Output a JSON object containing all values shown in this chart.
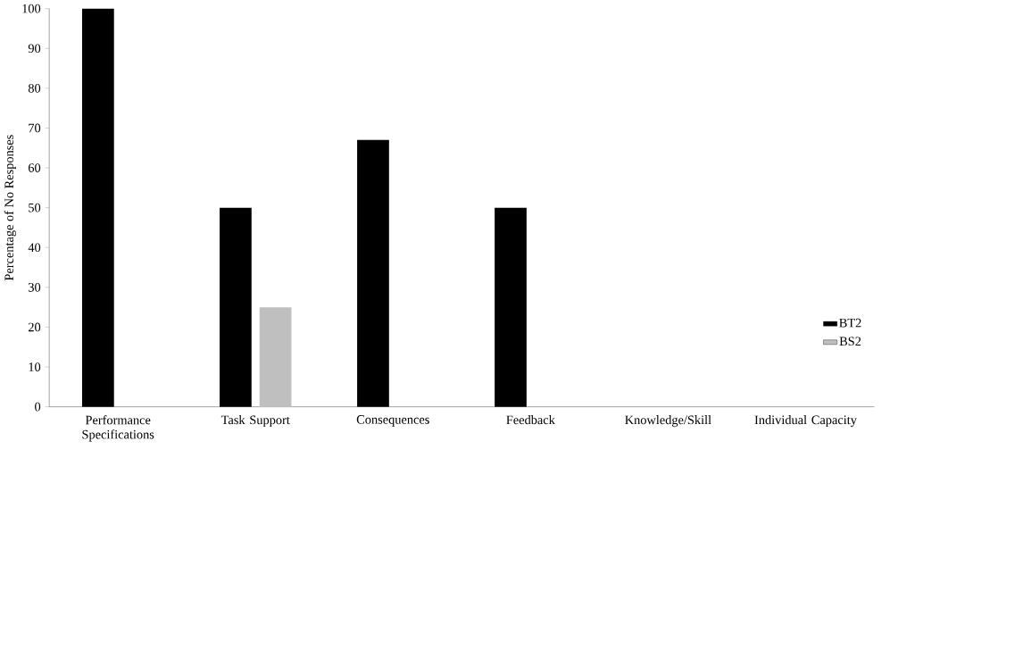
{
  "chart_data": {
    "type": "bar",
    "ylabel": "Percentage of No Responses",
    "categories": [
      "Performance Specifications",
      "Task Support",
      "Consequences",
      "Feedback",
      "Knowledge/Skill",
      "Individual Capacity"
    ],
    "series": [
      {
        "name": "BT2",
        "color": "#000000",
        "values": [
          100,
          50,
          67,
          50,
          0,
          0
        ]
      },
      {
        "name": "BS2",
        "color": "#bfbfbf",
        "values": [
          0,
          25,
          0,
          0,
          0,
          0
        ]
      }
    ],
    "ylim": [
      0,
      100
    ],
    "yticks": [
      0,
      10,
      20,
      30,
      40,
      50,
      60,
      70,
      80,
      90,
      100
    ],
    "legend": "right"
  }
}
